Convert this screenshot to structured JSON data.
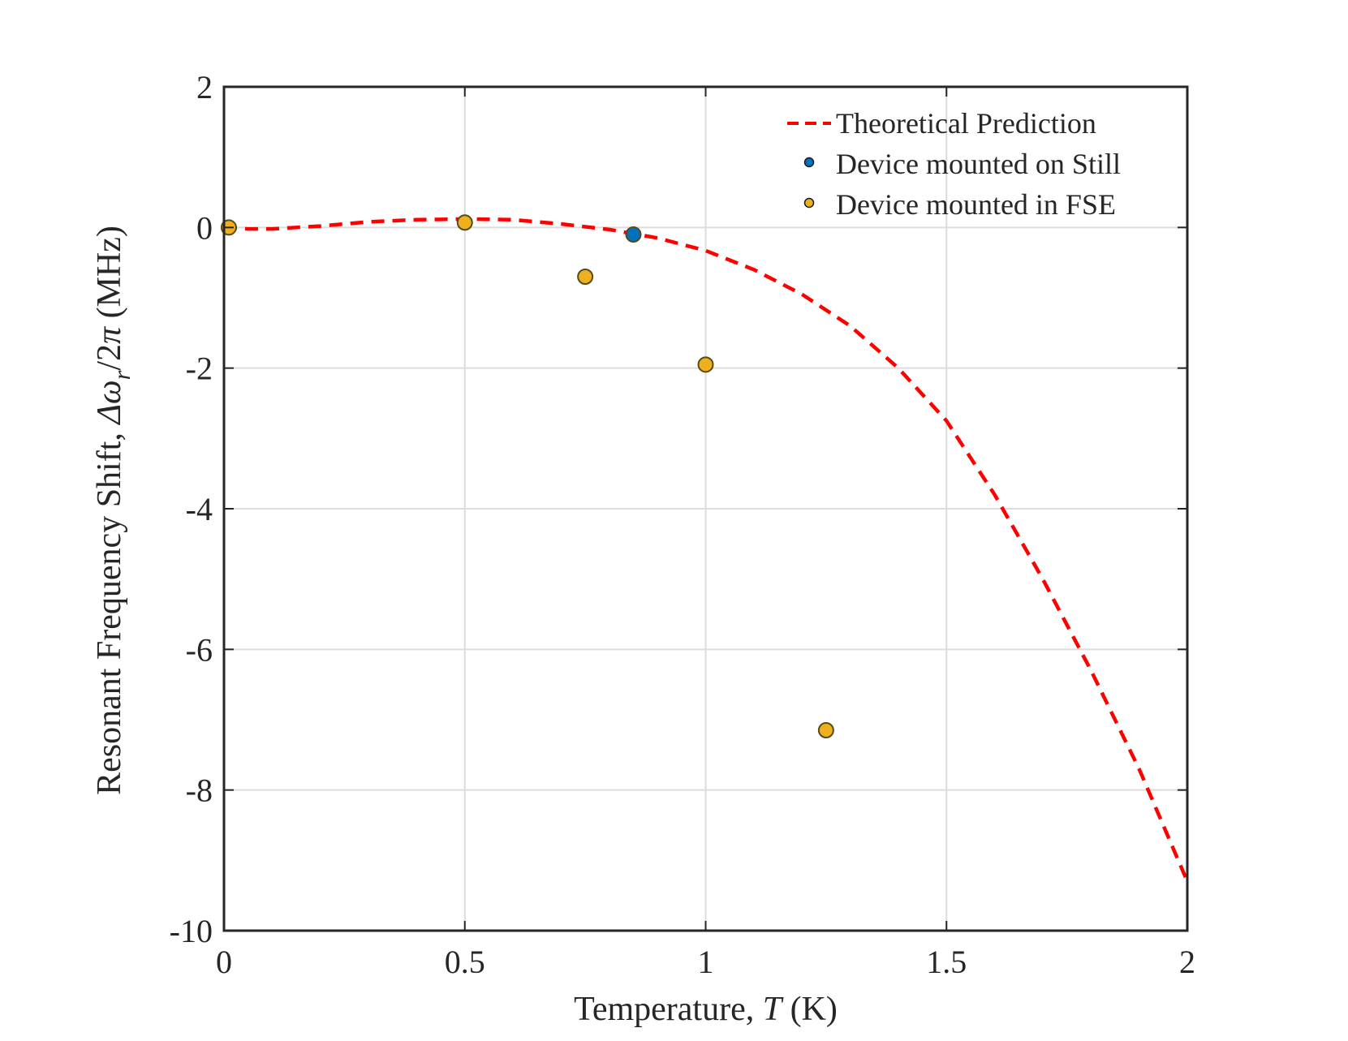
{
  "chart_data": {
    "type": "scatter",
    "title": "",
    "xlabel": {
      "prefix": "Temperature, ",
      "symbol": "T",
      "suffix": " (K)"
    },
    "ylabel": {
      "prefix": "Resonant Frequency Shift, ",
      "symbol": "Δω",
      "subscript": "r",
      "mid": "/2",
      "pi": "π",
      "suffix": " (MHz)"
    },
    "xlim": [
      0,
      2
    ],
    "ylim": [
      -10,
      2
    ],
    "xticks": [
      0,
      0.5,
      1,
      1.5,
      2
    ],
    "xtick_labels": [
      "0",
      "0.5",
      "1",
      "1.5",
      "2"
    ],
    "yticks": [
      -10,
      -8,
      -6,
      -4,
      -2,
      0,
      2
    ],
    "ytick_labels": [
      "-10",
      "-8",
      "-6",
      "-4",
      "-2",
      "0",
      "2"
    ],
    "grid": true,
    "legend_position": "top-right",
    "series": [
      {
        "name": "Theoretical Prediction",
        "kind": "line",
        "style": "dashed",
        "color": "#ff0000",
        "x": [
          0,
          0.05,
          0.1,
          0.2,
          0.3,
          0.4,
          0.5,
          0.6,
          0.7,
          0.8,
          0.9,
          1.0,
          1.1,
          1.2,
          1.3,
          1.4,
          1.5,
          1.6,
          1.7,
          1.8,
          1.9,
          2.0
        ],
        "y": [
          0,
          -0.02,
          -0.02,
          0.02,
          0.08,
          0.11,
          0.12,
          0.11,
          0.05,
          -0.03,
          -0.15,
          -0.33,
          -0.6,
          -0.95,
          -1.4,
          -2.0,
          -2.75,
          -3.8,
          -5.0,
          -6.3,
          -7.7,
          -9.3
        ]
      },
      {
        "name": "Device mounted on Still",
        "kind": "scatter",
        "color": "#0072bd",
        "x": [
          0.85
        ],
        "y": [
          -0.1
        ]
      },
      {
        "name": "Device mounted in FSE",
        "kind": "scatter",
        "color": "#edb120",
        "x": [
          0.01,
          0.5,
          0.75,
          1.0,
          1.25
        ],
        "y": [
          0,
          0.07,
          -0.7,
          -1.95,
          -7.15
        ]
      }
    ]
  }
}
